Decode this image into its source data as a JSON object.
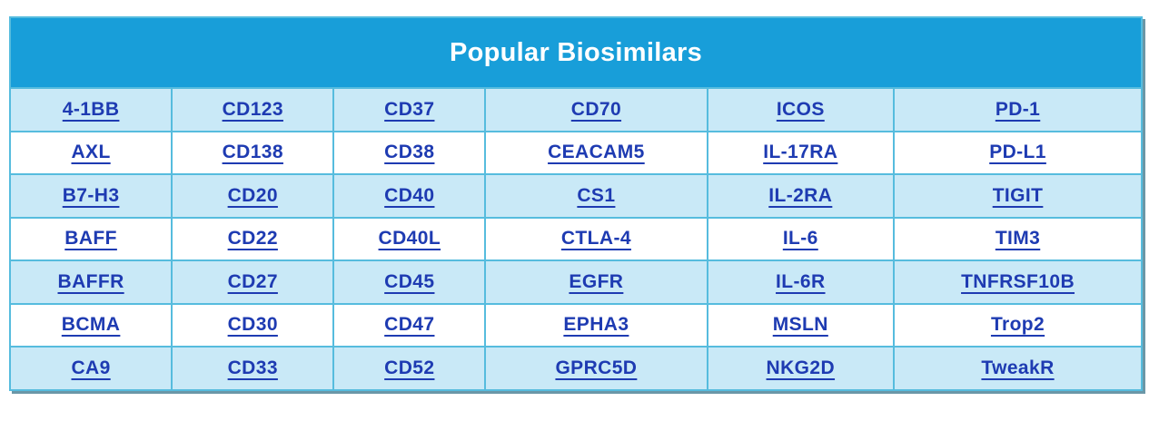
{
  "table": {
    "title": "Popular Biosimilars",
    "columns": 6,
    "rows": [
      [
        "4-1BB",
        "CD123",
        "CD37",
        "CD70",
        "ICOS",
        "PD-1"
      ],
      [
        "AXL",
        "CD138",
        "CD38",
        "CEACAM5",
        "IL-17RA",
        "PD-L1"
      ],
      [
        "B7-H3",
        "CD20",
        "CD40",
        "CS1",
        "IL-2RA",
        "TIGIT"
      ],
      [
        "BAFF",
        "CD22",
        "CD40L",
        "CTLA-4",
        "IL-6",
        "TIM3"
      ],
      [
        "BAFFR",
        "CD27",
        "CD45",
        "EGFR",
        "IL-6R",
        "TNFRSF10B"
      ],
      [
        "BCMA",
        "CD30",
        "CD47",
        "EPHA3",
        "MSLN",
        "Trop2"
      ],
      [
        "CA9",
        "CD33",
        "CD52",
        "GPRC5D",
        "NKG2D",
        "TweakR"
      ]
    ]
  },
  "colors": {
    "header_bg": "#189ed9",
    "row_alt_bg": "#c9e9f7",
    "row_bg": "#ffffff",
    "grid_border": "#56bcde",
    "outer_shadow": "#6b97a7",
    "link": "#1e3bb2",
    "header_text": "#ffffff"
  }
}
